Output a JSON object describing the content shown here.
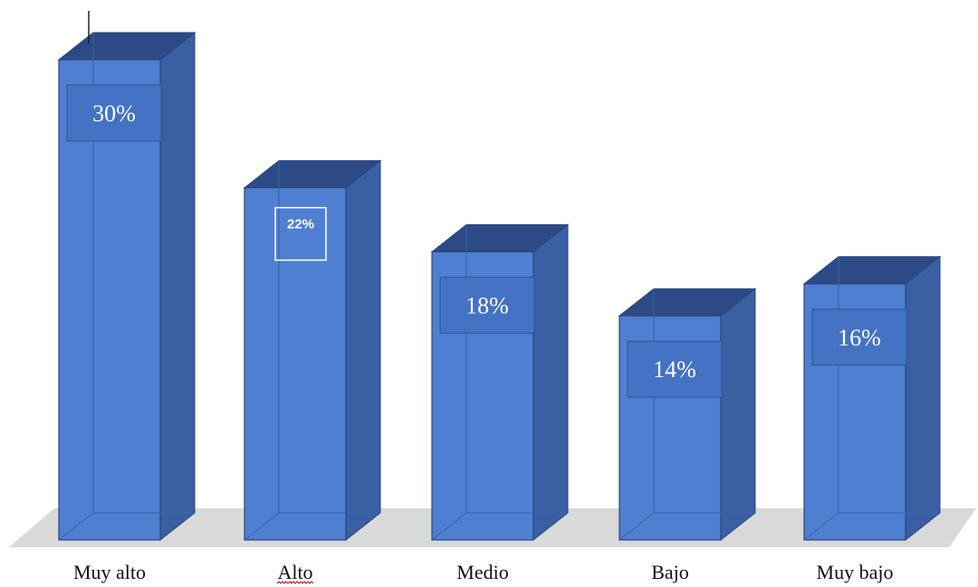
{
  "chart_data": {
    "type": "bar",
    "categories": [
      "Muy alto",
      "Alto",
      "Medio",
      "Bajo",
      "Muy bajo"
    ],
    "values": [
      30,
      22,
      18,
      14,
      16
    ],
    "data_labels": [
      "30%",
      "22%",
      "18%",
      "14%",
      "16%"
    ],
    "ylim": [
      0,
      30
    ],
    "grid": false,
    "legend": "none",
    "style": "3d-column"
  },
  "colors": {
    "bar_front": "#4f7fd0",
    "bar_side": "#3a5fa3",
    "bar_top": "#2c4b86",
    "bar_edge": "#2a4680",
    "floor": "#d9d9d9",
    "label_box": "#4472c4"
  }
}
